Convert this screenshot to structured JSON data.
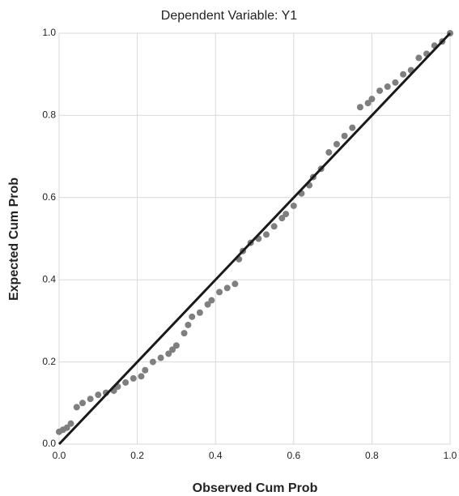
{
  "chart_data": {
    "type": "scatter",
    "title": "Dependent Variable: Y1",
    "x_label": "Observed Cum Prob",
    "y_label": "Expected Cum Prob",
    "color": "#7f7f7f",
    "line_color": "#1a1a1a",
    "grid": true,
    "xlim": [
      0,
      1
    ],
    "ylim": [
      0,
      1
    ],
    "xticks": [
      {
        "value": 0,
        "label": "0.0"
      },
      0.2,
      0.4,
      0.6,
      0.8,
      {
        "value": 1,
        "label": "1.0"
      }
    ],
    "yticks": [
      {
        "value": 0,
        "label": "0.0"
      },
      0.2,
      0.4,
      0.6,
      0.8,
      {
        "value": 1,
        "label": "1.0"
      }
    ],
    "x": [
      0.0,
      0.01,
      0.02,
      0.03,
      0.045,
      0.06,
      0.08,
      0.1,
      0.12,
      0.14,
      0.15,
      0.17,
      0.19,
      0.21,
      0.22,
      0.24,
      0.26,
      0.28,
      0.29,
      0.3,
      0.32,
      0.33,
      0.34,
      0.36,
      0.38,
      0.39,
      0.41,
      0.43,
      0.45,
      0.46,
      0.47,
      0.49,
      0.51,
      0.53,
      0.55,
      0.57,
      0.58,
      0.6,
      0.62,
      0.64,
      0.65,
      0.67,
      0.69,
      0.71,
      0.73,
      0.75,
      0.77,
      0.79,
      0.8,
      0.82,
      0.84,
      0.86,
      0.88,
      0.9,
      0.92,
      0.94,
      0.96,
      0.98,
      1.0
    ],
    "values": [
      0.03,
      0.035,
      0.04,
      0.05,
      0.09,
      0.1,
      0.11,
      0.12,
      0.125,
      0.13,
      0.14,
      0.15,
      0.16,
      0.165,
      0.18,
      0.2,
      0.21,
      0.22,
      0.23,
      0.24,
      0.27,
      0.29,
      0.31,
      0.32,
      0.34,
      0.35,
      0.37,
      0.38,
      0.39,
      0.45,
      0.47,
      0.49,
      0.5,
      0.51,
      0.53,
      0.55,
      0.56,
      0.58,
      0.61,
      0.63,
      0.65,
      0.67,
      0.71,
      0.73,
      0.75,
      0.77,
      0.82,
      0.83,
      0.84,
      0.86,
      0.87,
      0.88,
      0.9,
      0.91,
      0.94,
      0.95,
      0.97,
      0.98,
      1.0
    ]
  }
}
